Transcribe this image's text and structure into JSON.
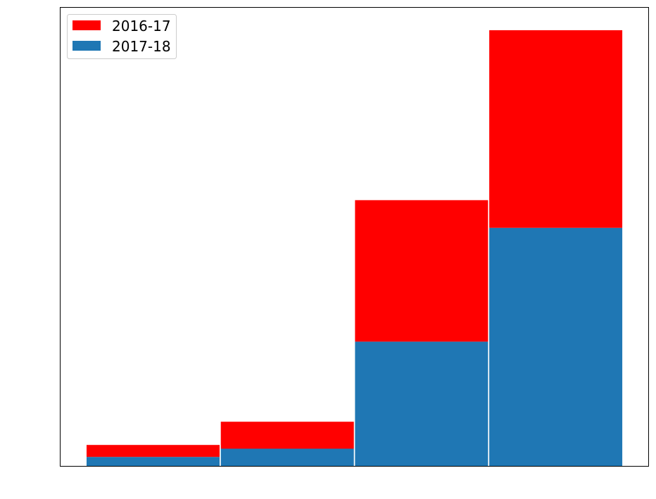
{
  "chart_data": {
    "type": "bar",
    "stacked": true,
    "title": "",
    "xlabel": "",
    "ylabel": "",
    "categories": [
      "",
      "",
      "",
      ""
    ],
    "series": [
      {
        "name": "2017-18",
        "values": [
          12,
          23,
          166,
          318
        ],
        "color": "#1f77b4"
      },
      {
        "name": "2016-17",
        "values": [
          16,
          36,
          189,
          264
        ],
        "color": "#ff0000"
      }
    ],
    "ylim": [
      0,
      612
    ],
    "grid": false,
    "legend": {
      "placement": "top-left",
      "entries": [
        {
          "label": "2016-17",
          "color": "#ff0000"
        },
        {
          "label": "2017-18",
          "color": "#1f77b4"
        }
      ]
    }
  }
}
